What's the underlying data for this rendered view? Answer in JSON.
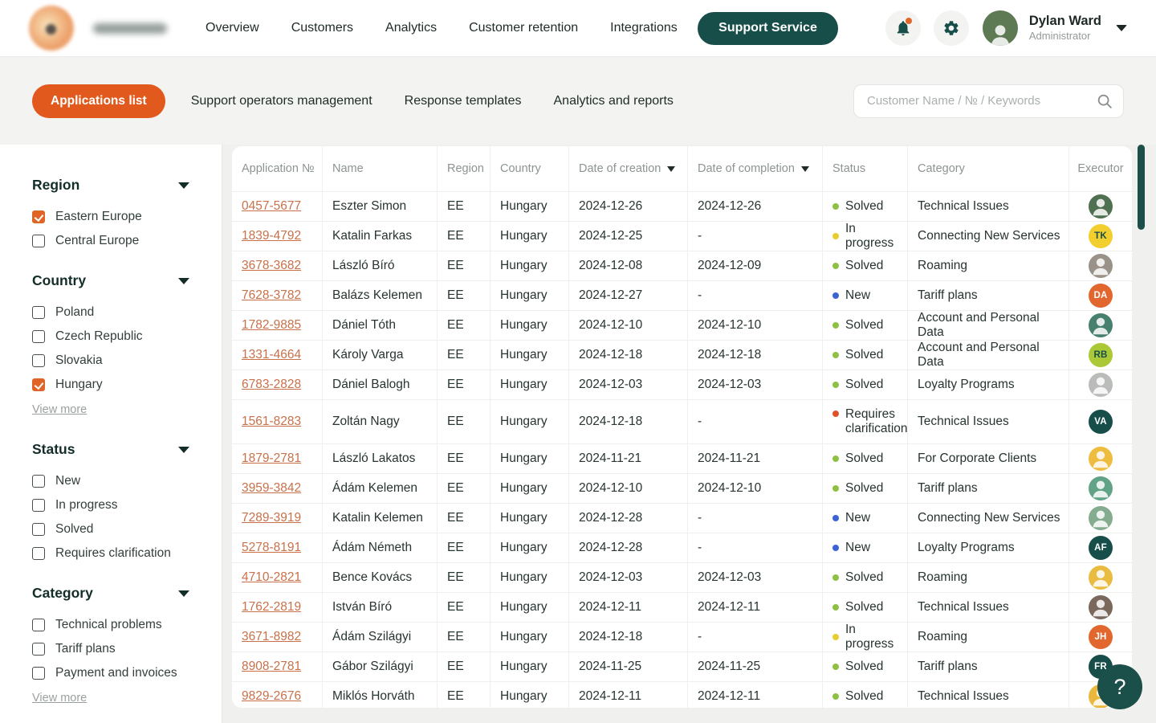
{
  "brand": {
    "name": "Telecom"
  },
  "nav": {
    "items": [
      "Overview",
      "Customers",
      "Analytics",
      "Customer retention",
      "Integrations"
    ],
    "support_label": "Support Service"
  },
  "user": {
    "name": "Dylan Ward",
    "role": "Administrator",
    "avatar_bg": "#5d7a55"
  },
  "tabs": {
    "items": [
      {
        "label": "Applications list",
        "active": true
      },
      {
        "label": "Support operators management",
        "active": false
      },
      {
        "label": "Response templates",
        "active": false
      },
      {
        "label": "Analytics and reports",
        "active": false
      }
    ],
    "search_placeholder": "Customer Name / № / Keywords"
  },
  "filters": {
    "view_more_label": "View more",
    "sections": [
      {
        "title": "Region",
        "view_more": false,
        "options": [
          {
            "label": "Eastern Europe",
            "checked": true
          },
          {
            "label": "Central Europe",
            "checked": false
          }
        ]
      },
      {
        "title": "Country",
        "view_more": true,
        "options": [
          {
            "label": "Poland",
            "checked": false
          },
          {
            "label": "Czech Republic",
            "checked": false
          },
          {
            "label": "Slovakia",
            "checked": false
          },
          {
            "label": "Hungary",
            "checked": true
          }
        ]
      },
      {
        "title": "Status",
        "view_more": false,
        "options": [
          {
            "label": "New",
            "checked": false
          },
          {
            "label": "In progress",
            "checked": false
          },
          {
            "label": "Solved",
            "checked": false
          },
          {
            "label": "Requires clarification",
            "checked": false
          }
        ]
      },
      {
        "title": "Category",
        "view_more": true,
        "options": [
          {
            "label": "Technical problems",
            "checked": false
          },
          {
            "label": "Tariff plans",
            "checked": false
          },
          {
            "label": "Payment and invoices",
            "checked": false
          }
        ]
      }
    ]
  },
  "table": {
    "columns": [
      {
        "label": "Application №",
        "sortable": false
      },
      {
        "label": "Name",
        "sortable": false
      },
      {
        "label": "Region",
        "sortable": false
      },
      {
        "label": "Country",
        "sortable": false
      },
      {
        "label": "Date of creation",
        "sortable": true
      },
      {
        "label": "Date of completion",
        "sortable": true
      },
      {
        "label": "Status",
        "sortable": false
      },
      {
        "label": "Category",
        "sortable": false
      },
      {
        "label": "Executor",
        "sortable": false
      }
    ],
    "status_colors": {
      "Solved": "#8fc043",
      "In progress": "#e8cd31",
      "New": "#3a63d6",
      "Requires clarification": "#e0512a"
    },
    "rows": [
      {
        "id": "0457-5677",
        "name": "Eszter Simon",
        "region": "EE",
        "country": "Hungary",
        "created": "2024-12-26",
        "completed": "2024-12-26",
        "status": "Solved",
        "category": "Technical Issues",
        "executor": {
          "type": "photo",
          "bg": "#4f7152"
        }
      },
      {
        "id": "1839-4792",
        "name": "Katalin Farkas",
        "region": "EE",
        "country": "Hungary",
        "created": "2024-12-25",
        "completed": "-",
        "status": "In progress",
        "category": "Connecting New Services",
        "executor": {
          "type": "initials",
          "label": "TK",
          "bg": "#f2cf2e",
          "fg": "#174e49"
        }
      },
      {
        "id": "3678-3682",
        "name": "László Bíró",
        "region": "EE",
        "country": "Hungary",
        "created": "2024-12-08",
        "completed": "2024-12-09",
        "status": "Solved",
        "category": "Roaming",
        "executor": {
          "type": "photo",
          "bg": "#9a9288"
        }
      },
      {
        "id": "7628-3782",
        "name": "Balázs Kelemen",
        "region": "EE",
        "country": "Hungary",
        "created": "2024-12-27",
        "completed": "-",
        "status": "New",
        "category": "Tariff plans",
        "executor": {
          "type": "initials",
          "label": "DA",
          "bg": "#e2672e",
          "fg": "#ffffff"
        }
      },
      {
        "id": "1782-9885",
        "name": "Dániel Tóth",
        "region": "EE",
        "country": "Hungary",
        "created": "2024-12-10",
        "completed": "2024-12-10",
        "status": "Solved",
        "category": "Account and Personal Data",
        "executor": {
          "type": "photo",
          "bg": "#47806f"
        }
      },
      {
        "id": "1331-4664",
        "name": "Károly Varga",
        "region": "EE",
        "country": "Hungary",
        "created": "2024-12-18",
        "completed": "2024-12-18",
        "status": "Solved",
        "category": "Account and Personal Data",
        "executor": {
          "type": "initials",
          "label": "RB",
          "bg": "#abc836",
          "fg": "#174e49"
        }
      },
      {
        "id": "6783-2828",
        "name": "Dániel Balogh",
        "region": "EE",
        "country": "Hungary",
        "created": "2024-12-03",
        "completed": "2024-12-03",
        "status": "Solved",
        "category": "Loyalty Programs",
        "executor": {
          "type": "photo",
          "bg": "#b9bcb9"
        }
      },
      {
        "id": "1561-8283",
        "name": "Zoltán Nagy",
        "region": "EE",
        "country": "Hungary",
        "created": "2024-12-18",
        "completed": "-",
        "status": "Requires clarification",
        "category": "Technical Issues",
        "executor": {
          "type": "initials",
          "label": "VA",
          "bg": "#174e49",
          "fg": "#ffffff"
        }
      },
      {
        "id": "1879-2781",
        "name": "László Lakatos",
        "region": "EE",
        "country": "Hungary",
        "created": "2024-11-21",
        "completed": "2024-11-21",
        "status": "Solved",
        "category": "For Corporate Clients",
        "executor": {
          "type": "photo",
          "bg": "#eebc3f"
        }
      },
      {
        "id": "3959-3842",
        "name": "Ádám Kelemen",
        "region": "EE",
        "country": "Hungary",
        "created": "2024-12-10",
        "completed": "2024-12-10",
        "status": "Solved",
        "category": "Tariff plans",
        "executor": {
          "type": "photo",
          "bg": "#62a387"
        }
      },
      {
        "id": "7289-3919",
        "name": "Katalin Kelemen",
        "region": "EE",
        "country": "Hungary",
        "created": "2024-12-28",
        "completed": "-",
        "status": "New",
        "category": "Connecting New Services",
        "executor": {
          "type": "photo",
          "bg": "#86ac90"
        }
      },
      {
        "id": "5278-8191",
        "name": "Ádám Németh",
        "region": "EE",
        "country": "Hungary",
        "created": "2024-12-28",
        "completed": "-",
        "status": "New",
        "category": "Loyalty Programs",
        "executor": {
          "type": "initials",
          "label": "AF",
          "bg": "#174e49",
          "fg": "#ffffff"
        }
      },
      {
        "id": "4710-2821",
        "name": "Bence Kovács",
        "region": "EE",
        "country": "Hungary",
        "created": "2024-12-03",
        "completed": "2024-12-03",
        "status": "Solved",
        "category": "Roaming",
        "executor": {
          "type": "photo",
          "bg": "#e9bc41"
        }
      },
      {
        "id": "1762-2819",
        "name": "István Bíró",
        "region": "EE",
        "country": "Hungary",
        "created": "2024-12-11",
        "completed": "2024-12-11",
        "status": "Solved",
        "category": "Technical Issues",
        "executor": {
          "type": "photo",
          "bg": "#7a685c"
        }
      },
      {
        "id": "3671-8982",
        "name": "Ádám Szilágyi",
        "region": "EE",
        "country": "Hungary",
        "created": "2024-12-18",
        "completed": "-",
        "status": "In progress",
        "category": "Roaming",
        "executor": {
          "type": "initials",
          "label": "JH",
          "bg": "#e2672e",
          "fg": "#ffffff"
        }
      },
      {
        "id": "8908-2781",
        "name": "Gábor Szilágyi",
        "region": "EE",
        "country": "Hungary",
        "created": "2024-11-25",
        "completed": "2024-11-25",
        "status": "Solved",
        "category": "Tariff plans",
        "executor": {
          "type": "initials",
          "label": "FR",
          "bg": "#174e49",
          "fg": "#ffffff"
        }
      },
      {
        "id": "9829-2676",
        "name": "Miklós Horváth",
        "region": "EE",
        "country": "Hungary",
        "created": "2024-12-11",
        "completed": "2024-12-11",
        "status": "Solved",
        "category": "Technical Issues",
        "executor": {
          "type": "photo",
          "bg": "#e9b83c"
        }
      }
    ]
  },
  "help": {
    "label": "?"
  }
}
